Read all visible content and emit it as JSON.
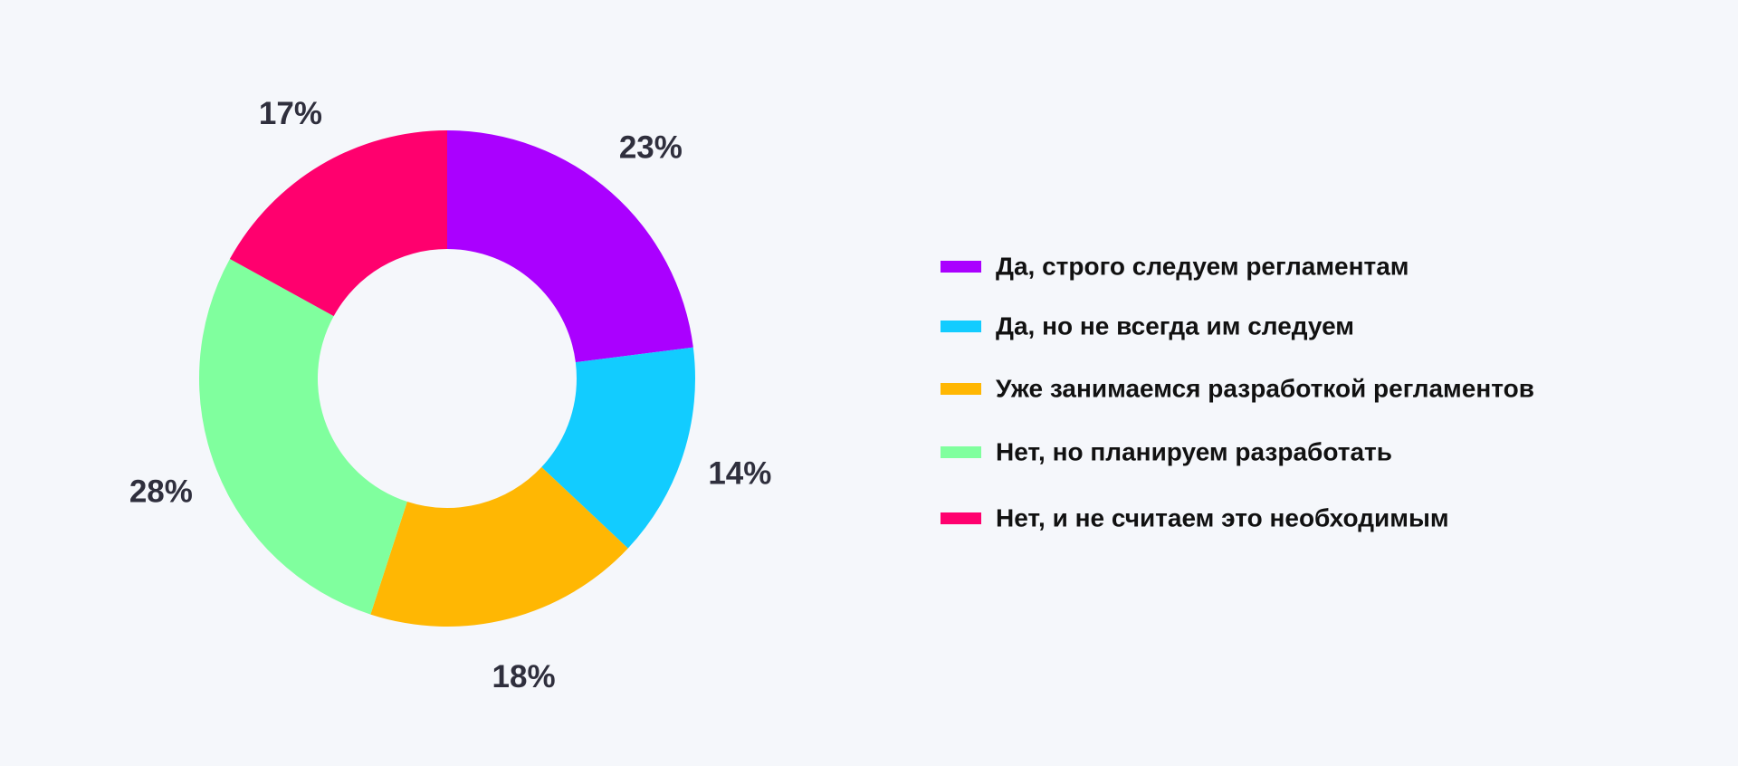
{
  "chart_data": {
    "type": "pie",
    "donut": true,
    "legend_position": "right",
    "categories": [
      "Да, строго следуем регламентам",
      "Да, но не всегда им следуем",
      "Уже занимаемся разработкой регламентов",
      "Нет, но планируем разработать",
      "Нет, и не считаем это необходимым"
    ],
    "values": [
      23,
      14,
      18,
      28,
      17
    ],
    "labels": [
      "23%",
      "14%",
      "18%",
      "28%",
      "17%"
    ],
    "colors": [
      "#aa00ff",
      "#12ccff",
      "#ffb703",
      "#80ff9e",
      "#ff006e"
    ]
  }
}
